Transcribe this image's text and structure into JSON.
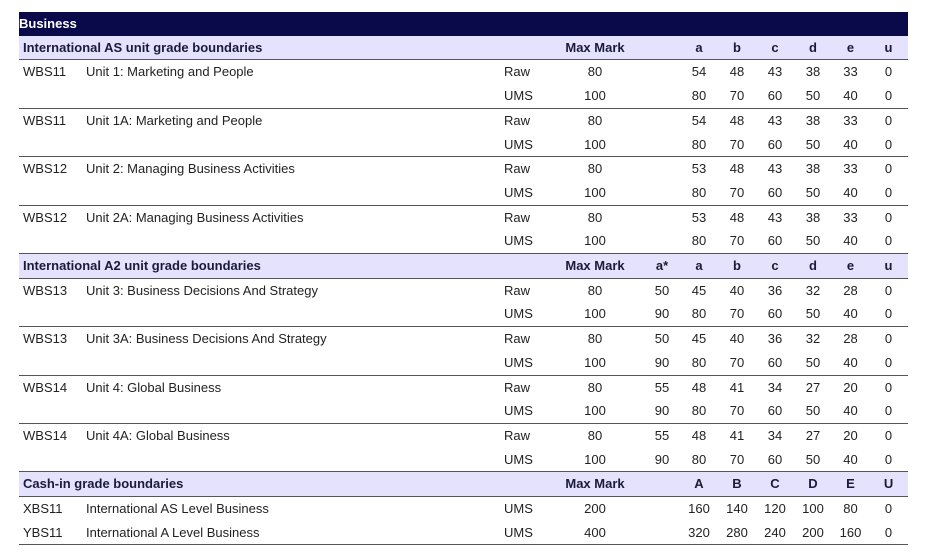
{
  "title": "Business",
  "sections": [
    {
      "heading": "International AS unit grade boundaries",
      "max_mark_label": "Max Mark",
      "grades": [
        "",
        "a",
        "b",
        "c",
        "d",
        "e",
        "u"
      ],
      "units": [
        {
          "code": "WBS11",
          "name": "Unit 1: Marketing and People",
          "rows": [
            {
              "type": "Raw",
              "max": "80",
              "g": [
                "",
                "54",
                "48",
                "43",
                "38",
                "33",
                "0"
              ]
            },
            {
              "type": "UMS",
              "max": "100",
              "g": [
                "",
                "80",
                "70",
                "60",
                "50",
                "40",
                "0"
              ]
            }
          ]
        },
        {
          "code": "WBS11",
          "name": "Unit 1A: Marketing and People",
          "rows": [
            {
              "type": "Raw",
              "max": "80",
              "g": [
                "",
                "54",
                "48",
                "43",
                "38",
                "33",
                "0"
              ]
            },
            {
              "type": "UMS",
              "max": "100",
              "g": [
                "",
                "80",
                "70",
                "60",
                "50",
                "40",
                "0"
              ]
            }
          ]
        },
        {
          "code": "WBS12",
          "name": "Unit 2: Managing Business Activities",
          "rows": [
            {
              "type": "Raw",
              "max": "80",
              "g": [
                "",
                "53",
                "48",
                "43",
                "38",
                "33",
                "0"
              ]
            },
            {
              "type": "UMS",
              "max": "100",
              "g": [
                "",
                "80",
                "70",
                "60",
                "50",
                "40",
                "0"
              ]
            }
          ]
        },
        {
          "code": "WBS12",
          "name": "Unit 2A: Managing Business Activities",
          "rows": [
            {
              "type": "Raw",
              "max": "80",
              "g": [
                "",
                "53",
                "48",
                "43",
                "38",
                "33",
                "0"
              ]
            },
            {
              "type": "UMS",
              "max": "100",
              "g": [
                "",
                "80",
                "70",
                "60",
                "50",
                "40",
                "0"
              ]
            }
          ]
        }
      ]
    },
    {
      "heading": "International A2 unit grade boundaries",
      "max_mark_label": "Max Mark",
      "grades": [
        "a*",
        "a",
        "b",
        "c",
        "d",
        "e",
        "u"
      ],
      "units": [
        {
          "code": "WBS13",
          "name": "Unit 3: Business Decisions And Strategy",
          "rows": [
            {
              "type": "Raw",
              "max": "80",
              "g": [
                "50",
                "45",
                "40",
                "36",
                "32",
                "28",
                "0"
              ]
            },
            {
              "type": "UMS",
              "max": "100",
              "g": [
                "90",
                "80",
                "70",
                "60",
                "50",
                "40",
                "0"
              ]
            }
          ]
        },
        {
          "code": "WBS13",
          "name": "Unit 3A: Business Decisions And Strategy",
          "rows": [
            {
              "type": "Raw",
              "max": "80",
              "g": [
                "50",
                "45",
                "40",
                "36",
                "32",
                "28",
                "0"
              ]
            },
            {
              "type": "UMS",
              "max": "100",
              "g": [
                "90",
                "80",
                "70",
                "60",
                "50",
                "40",
                "0"
              ]
            }
          ]
        },
        {
          "code": "WBS14",
          "name": "Unit 4: Global Business",
          "rows": [
            {
              "type": "Raw",
              "max": "80",
              "g": [
                "55",
                "48",
                "41",
                "34",
                "27",
                "20",
                "0"
              ]
            },
            {
              "type": "UMS",
              "max": "100",
              "g": [
                "90",
                "80",
                "70",
                "60",
                "50",
                "40",
                "0"
              ]
            }
          ]
        },
        {
          "code": "WBS14",
          "name": "Unit 4A: Global Business",
          "rows": [
            {
              "type": "Raw",
              "max": "80",
              "g": [
                "55",
                "48",
                "41",
                "34",
                "27",
                "20",
                "0"
              ]
            },
            {
              "type": "UMS",
              "max": "100",
              "g": [
                "90",
                "80",
                "70",
                "60",
                "50",
                "40",
                "0"
              ]
            }
          ]
        }
      ]
    },
    {
      "heading": "Cash-in grade boundaries",
      "max_mark_label": "Max Mark",
      "grades": [
        "",
        "A",
        "B",
        "C",
        "D",
        "E",
        "U"
      ],
      "cashin": [
        {
          "code": "XBS11",
          "name": "International AS Level Business",
          "type": "UMS",
          "max": "200",
          "g": [
            "",
            "160",
            "140",
            "120",
            "100",
            "80",
            "0"
          ]
        },
        {
          "code": "YBS11",
          "name": "International A Level Business",
          "type": "UMS",
          "max": "400",
          "g": [
            "",
            "320",
            "280",
            "240",
            "200",
            "160",
            "0"
          ]
        }
      ]
    }
  ]
}
